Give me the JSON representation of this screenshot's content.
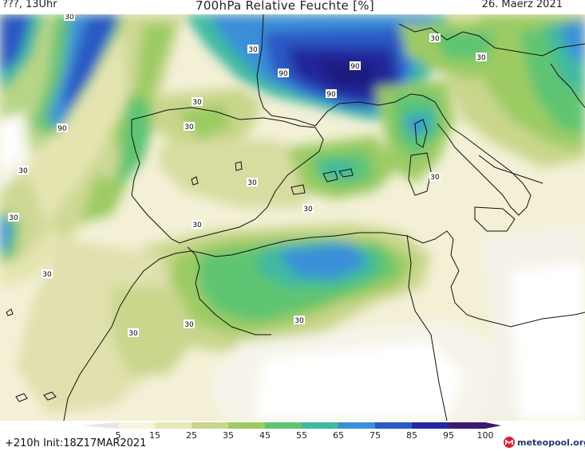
{
  "header": {
    "left": "???, 13Uhr",
    "title": "700hPa Relative Feuchte [%]",
    "date": "26. Maerz 2021"
  },
  "legend": {
    "ticks": [
      "5",
      "15",
      "25",
      "35",
      "45",
      "55",
      "65",
      "75",
      "85",
      "95",
      "100"
    ],
    "colors": [
      "#ffffff",
      "#f7f3df",
      "#e8e7b8",
      "#c9d68c",
      "#9ccb64",
      "#5fc472",
      "#3fb9a0",
      "#3a8fd8",
      "#2b58c4",
      "#24289a",
      "#3a1a6e"
    ]
  },
  "footer": {
    "run_label": "+210h  Init:18Z17MAR2021",
    "brand": "meteopool.org"
  },
  "map_labels": [
    {
      "text": "30",
      "kind": "contour"
    },
    {
      "text": "30",
      "kind": "contour"
    },
    {
      "text": "30",
      "kind": "contour"
    },
    {
      "text": "30",
      "kind": "contour"
    },
    {
      "text": "30",
      "kind": "contour"
    },
    {
      "text": "30",
      "kind": "contour"
    },
    {
      "text": "30",
      "kind": "contour"
    },
    {
      "text": "30",
      "kind": "contour"
    },
    {
      "text": "30",
      "kind": "contour"
    },
    {
      "text": "30",
      "kind": "contour"
    },
    {
      "text": "30",
      "kind": "contour"
    },
    {
      "text": "30",
      "kind": "contour"
    },
    {
      "text": "30",
      "kind": "contour"
    },
    {
      "text": "30",
      "kind": "contour"
    },
    {
      "text": "30",
      "kind": "contour"
    },
    {
      "text": "30",
      "kind": "contour"
    },
    {
      "text": "90",
      "kind": "contour"
    },
    {
      "text": "90",
      "kind": "contour"
    },
    {
      "text": "90",
      "kind": "contour"
    },
    {
      "text": "90",
      "kind": "contour"
    }
  ]
}
